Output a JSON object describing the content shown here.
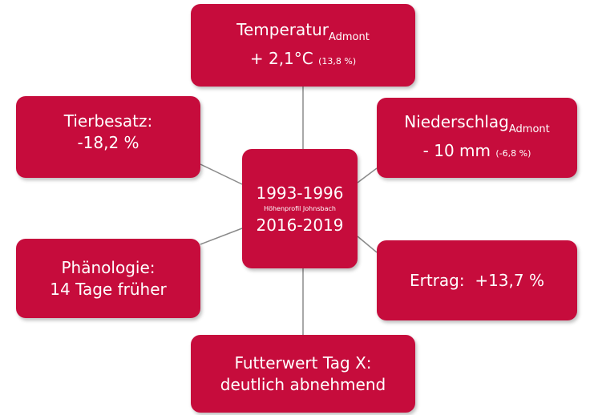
{
  "center": {
    "period_1": "1993-1996",
    "subtitle": "Höhenprofil Johnsbach",
    "period_2": "2016-2019"
  },
  "nodes": [
    {
      "label": "Temperatur",
      "label_sub": "Admont",
      "value": "+ 2,1°C",
      "value_note": "(13,8 %)"
    },
    {
      "label": "Tierbesatz:",
      "value": "-18,2 %"
    },
    {
      "label": "Niederschlag",
      "label_sub": "Admont",
      "value": "- 10 mm",
      "value_note": "(-6,8 %)"
    },
    {
      "label": "Phänologie:",
      "value": "14 Tage früher"
    },
    {
      "label": "Ertrag:  +13,7 %"
    },
    {
      "label": "Futterwert Tag X:",
      "value": "deutlich abnehmend"
    }
  ]
}
